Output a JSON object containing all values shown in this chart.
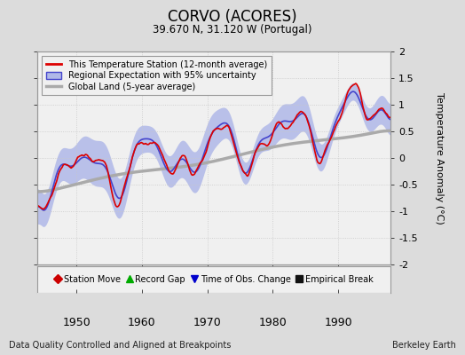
{
  "title": "CORVO (ACORES)",
  "subtitle": "39.670 N, 31.120 W (Portugal)",
  "xlabel_bottom": "Data Quality Controlled and Aligned at Breakpoints",
  "xlabel_right": "Berkeley Earth",
  "ylabel": "Temperature Anomaly (°C)",
  "ylim": [
    -2,
    2
  ],
  "xlim": [
    1944,
    1998
  ],
  "xticks": [
    1950,
    1960,
    1970,
    1980,
    1990
  ],
  "yticks": [
    -2,
    -1.5,
    -1,
    -0.5,
    0,
    0.5,
    1,
    1.5,
    2
  ],
  "bg_color": "#dcdcdc",
  "plot_bg_color": "#f0f0f0",
  "legend_entries": [
    {
      "label": "This Temperature Station (12-month average)",
      "color": "#dd0000",
      "lw": 2
    },
    {
      "label": "Regional Expectation with 95% uncertainty",
      "fill_color": "#b0b8e8",
      "line_color": "#4444cc"
    },
    {
      "label": "Global Land (5-year average)",
      "color": "#aaaaaa",
      "lw": 3
    }
  ],
  "marker_legend": [
    {
      "label": "Station Move",
      "color": "#cc0000",
      "marker": "D"
    },
    {
      "label": "Record Gap",
      "color": "#00aa00",
      "marker": "^"
    },
    {
      "label": "Time of Obs. Change",
      "color": "#0000cc",
      "marker": "v"
    },
    {
      "label": "Empirical Break",
      "color": "#111111",
      "marker": "s"
    }
  ],
  "grid_color": "#c8c8c8",
  "station_color": "#dd0000",
  "regional_line_color": "#4444cc",
  "regional_fill_color": "#b0b8e8",
  "global_color": "#aaaaaa"
}
